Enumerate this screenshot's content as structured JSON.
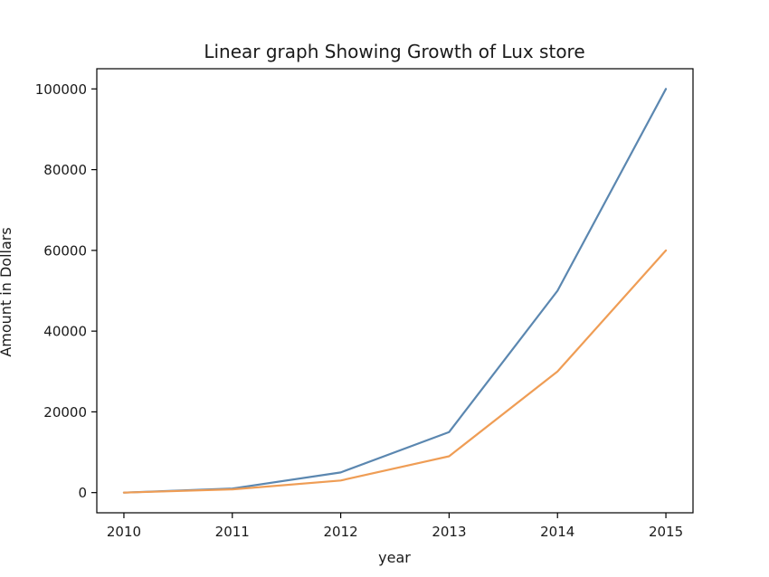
{
  "chart_data": {
    "type": "line",
    "title": "Linear graph Showing Growth of Lux store",
    "xlabel": "year",
    "ylabel": "Amount in Dollars",
    "x": [
      2010,
      2011,
      2012,
      2013,
      2014,
      2015
    ],
    "xticks": [
      "2010",
      "2011",
      "2012",
      "2013",
      "2014",
      "2015"
    ],
    "yticks": [
      0,
      20000,
      40000,
      60000,
      80000,
      100000
    ],
    "ytick_labels": [
      "0",
      "20000",
      "40000",
      "60000",
      "80000",
      "100000"
    ],
    "xlim": [
      2009.75,
      2015.25
    ],
    "ylim": [
      -5000,
      105000
    ],
    "grid": false,
    "legend": "none",
    "series": [
      {
        "values": [
          0,
          1000,
          5000,
          15000,
          50000,
          100000
        ],
        "color": "#5b87b0"
      },
      {
        "values": [
          0,
          800,
          3000,
          9000,
          30000,
          60000
        ],
        "color": "#ef9d55"
      }
    ]
  }
}
